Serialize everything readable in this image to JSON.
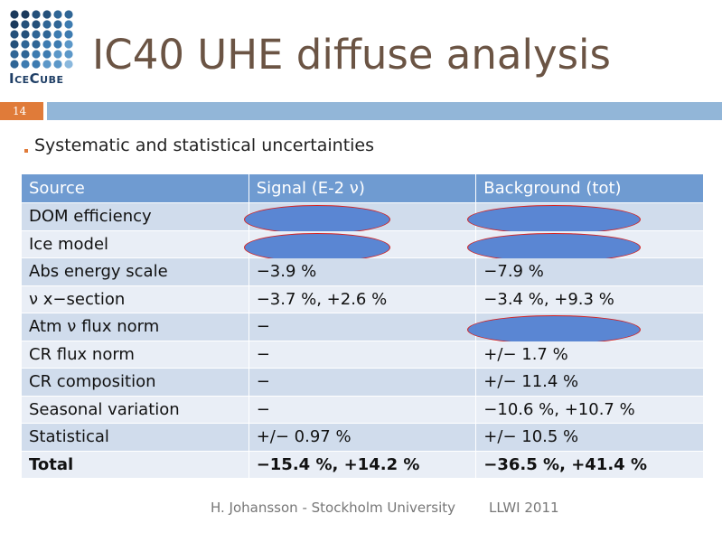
{
  "header": {
    "title": "IC40 UHE diffuse analysis",
    "logo": "IceCube",
    "slide_number": "14"
  },
  "bullet": "Systematic and statistical uncertainties",
  "table": {
    "columns": [
      "Source",
      "Signal (E-2 ν)",
      "Background (tot)"
    ],
    "rows": [
      [
        "DOM efficiency",
        null,
        null
      ],
      [
        "Ice model",
        null,
        null
      ],
      [
        "Abs energy scale",
        "−3.9 %",
        "−7.9 %"
      ],
      [
        "ν x−section",
        "−3.7 %, +2.6 %",
        "−3.4 %, +9.3 %"
      ],
      [
        "Atm ν flux norm",
        "−",
        null
      ],
      [
        "CR flux norm",
        "−",
        "+/− 1.7 %"
      ],
      [
        "CR composition",
        "−",
        "+/− 11.4 %"
      ],
      [
        "Seasonal variation",
        "−",
        "−10.6 %, +10.7 %"
      ],
      [
        "Statistical",
        "+/− 0.97 %",
        "+/− 10.5 %"
      ],
      [
        "Total",
        "−15.4 %, +14.2 %",
        "−36.5 %, +41.4 %"
      ]
    ]
  },
  "footer": {
    "author": "H. Johansson - Stockholm University",
    "event": "LLWI 2011"
  }
}
